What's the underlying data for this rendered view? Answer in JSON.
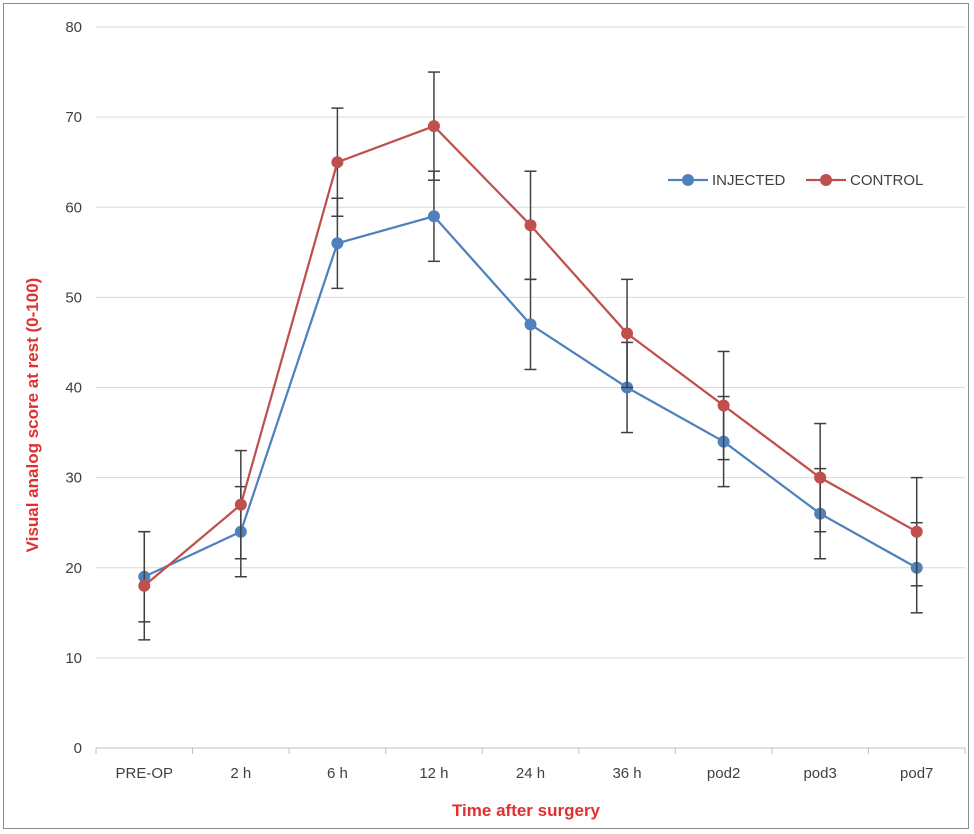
{
  "chart_data": {
    "type": "line",
    "title": "",
    "xlabel": "Time after surgery",
    "ylabel": "Visual analog score at rest (0-100)",
    "categories": [
      "PRE-OP",
      "2 h",
      "6 h",
      "12 h",
      "24 h",
      "36 h",
      "pod2",
      "pod3",
      "pod7"
    ],
    "ylim": [
      0,
      80
    ],
    "yticks": [
      0,
      10,
      20,
      30,
      40,
      50,
      60,
      70,
      80
    ],
    "grid": "horizontal",
    "legend_position": "top-right",
    "axis_title_color": "#e03030",
    "series": [
      {
        "name": "INJECTED",
        "color": "#4f81bd",
        "values": [
          19,
          24,
          56,
          59,
          47,
          40,
          34,
          26,
          20
        ],
        "error": [
          5,
          5,
          5,
          5,
          5,
          5,
          5,
          5,
          5
        ]
      },
      {
        "name": "CONTROL",
        "color": "#c0504d",
        "values": [
          18,
          27,
          65,
          69,
          58,
          46,
          38,
          30,
          24
        ],
        "error": [
          6,
          6,
          6,
          6,
          6,
          6,
          6,
          6,
          6
        ]
      }
    ]
  }
}
